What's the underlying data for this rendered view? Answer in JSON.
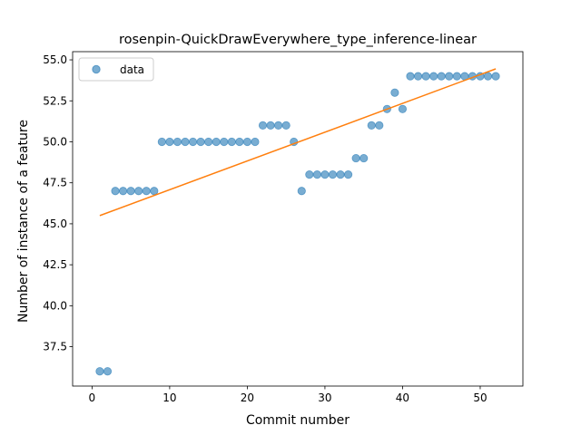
{
  "chart_data": {
    "type": "scatter",
    "title": "rosenpin-QuickDrawEverywhere_type_inference-linear",
    "xlabel": "Commit number",
    "ylabel": "Number of instance of a feature",
    "xlim": [
      -2.5,
      55.5
    ],
    "ylim": [
      35.1,
      55.5
    ],
    "xticks": [
      0,
      10,
      20,
      30,
      40,
      50
    ],
    "yticks": [
      37.5,
      40.0,
      42.5,
      45.0,
      47.5,
      50.0,
      52.5,
      55.0
    ],
    "xtick_labels": [
      "0",
      "10",
      "20",
      "30",
      "40",
      "50"
    ],
    "ytick_labels": [
      "37.5",
      "40.0",
      "42.5",
      "45.0",
      "47.5",
      "50.0",
      "52.5",
      "55.0"
    ],
    "grid": false,
    "legend": {
      "position": "top-left",
      "entries": [
        "data"
      ]
    },
    "series": [
      {
        "name": "data",
        "kind": "scatter",
        "color": "#1f77b4",
        "x": [
          1,
          2,
          3,
          4,
          5,
          6,
          7,
          8,
          9,
          10,
          11,
          12,
          13,
          14,
          15,
          16,
          17,
          18,
          19,
          20,
          21,
          22,
          23,
          24,
          25,
          26,
          27,
          28,
          29,
          30,
          31,
          32,
          33,
          34,
          35,
          36,
          37,
          38,
          39,
          40,
          41,
          42,
          43,
          44,
          45,
          46,
          47,
          48,
          49,
          50,
          51,
          52
        ],
        "y": [
          36,
          36,
          47,
          47,
          47,
          47,
          47,
          47,
          50,
          50,
          50,
          50,
          50,
          50,
          50,
          50,
          50,
          50,
          50,
          50,
          50,
          51,
          51,
          51,
          51,
          50,
          47,
          48,
          48,
          48,
          48,
          48,
          48,
          49,
          49,
          51,
          51,
          52,
          53,
          52,
          54,
          54,
          54,
          54,
          54,
          54,
          54,
          54,
          54,
          54,
          54,
          54
        ]
      },
      {
        "kind": "line",
        "color": "#ff7f0e",
        "x": [
          1,
          52
        ],
        "y": [
          45.5,
          54.45
        ]
      }
    ]
  }
}
